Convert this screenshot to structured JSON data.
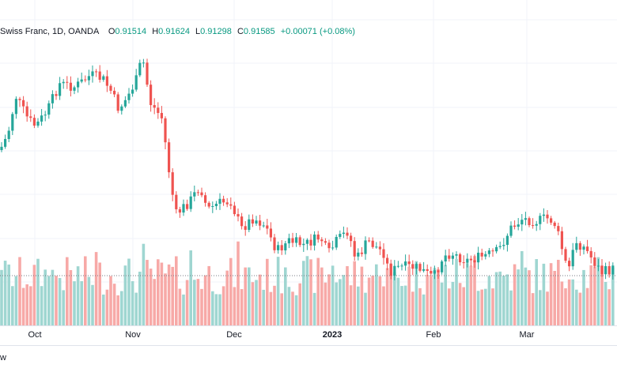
{
  "legend": {
    "title": "Swiss Franc, 1D, OANDA",
    "o_label": "O",
    "o_value": "0.91514",
    "h_label": "H",
    "h_value": "0.91624",
    "l_label": "L",
    "l_value": "0.91298",
    "c_label": "C",
    "c_value": "0.91585",
    "change": "+0.00071 (+0.08%)"
  },
  "time_axis": {
    "labels": [
      "Oct",
      "Nov",
      "Dec",
      "2023",
      "Feb",
      "Mar"
    ]
  },
  "footer": {
    "text": "w"
  },
  "colors": {
    "up": "#26a69a",
    "down": "#ef5350",
    "up_volume": "#9fd6d1",
    "down_volume": "#f7a9a7",
    "grid": "#f0f3fa"
  },
  "chart_data": {
    "type": "candlestick",
    "title": "Swiss Franc, 1D, OANDA",
    "xlabel": "",
    "ylabel": "",
    "ohlc_note": "relative price levels (0-100) read from candle positions; no price scale visible",
    "ylim": [
      0,
      100
    ],
    "grid": true,
    "x_ticks": [
      "Oct",
      "Nov",
      "Dec",
      "2023",
      "Feb",
      "Mar"
    ],
    "volume_threshold": 20
  }
}
